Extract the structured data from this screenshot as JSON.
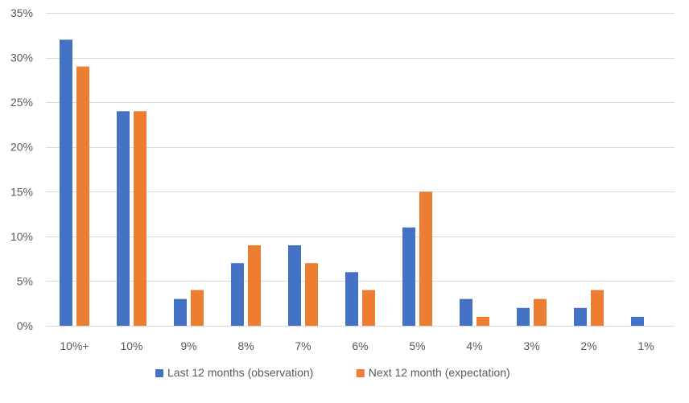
{
  "chart_data": {
    "type": "bar",
    "title": "",
    "xlabel": "",
    "ylabel": "",
    "categories": [
      "10%+",
      "10%",
      "9%",
      "8%",
      "7%",
      "6%",
      "5%",
      "4%",
      "3%",
      "2%",
      "1%"
    ],
    "series": [
      {
        "name": "Last 12 months (observation)",
        "color": "#4472C4",
        "values": [
          32,
          24,
          3,
          7,
          9,
          6,
          11,
          3,
          2,
          2,
          1
        ]
      },
      {
        "name": "Next 12 month (expectation)",
        "color": "#ED7D31",
        "values": [
          29,
          24,
          4,
          9,
          7,
          4,
          15,
          1,
          3,
          4,
          0
        ]
      }
    ],
    "ylim": [
      0,
      35
    ],
    "yticks": [
      0,
      5,
      10,
      15,
      20,
      25,
      30,
      35
    ],
    "ytick_labels": [
      "0%",
      "5%",
      "10%",
      "15%",
      "20%",
      "25%",
      "30%",
      "35%"
    ],
    "value_format": "percent",
    "grid": true,
    "gridline_color": "#D9D9D9",
    "legend_position": "bottom"
  }
}
